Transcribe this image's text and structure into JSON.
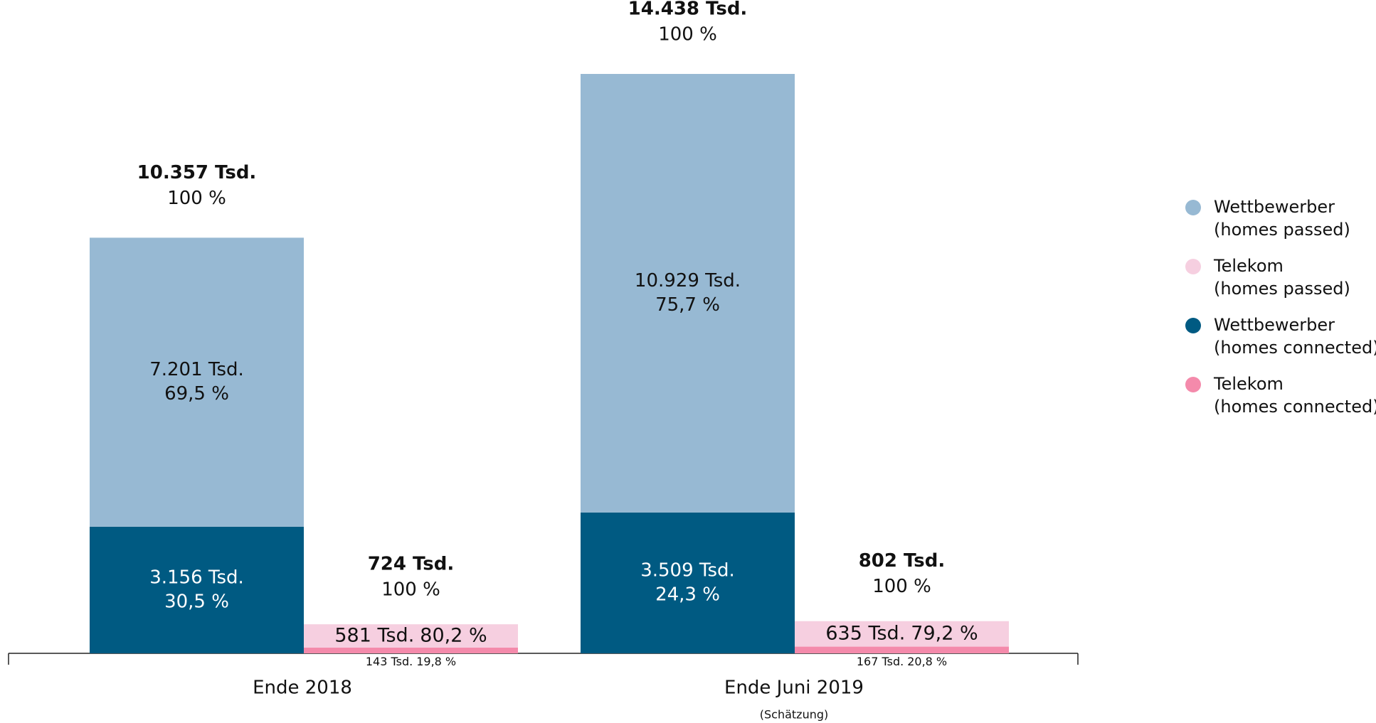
{
  "chart_data": {
    "type": "grouped_stacked_bar",
    "categories": [
      "Ende 2018",
      "Ende Juni 2019"
    ],
    "category_notes": [
      null,
      "(Schätzung)"
    ],
    "stacks": [
      {
        "totals": [
          10357,
          14438
        ],
        "total_labels": [
          "10.357 Tsd.",
          "14.438 Tsd."
        ],
        "total_percents": [
          100,
          100
        ],
        "total_percent_labels": [
          "100 %",
          "100 %"
        ],
        "series": [
          {
            "name": "Wettbewerber",
            "detail": "(homes connected)",
            "color": "#005a82",
            "values": [
              3156,
              3509
            ],
            "value_labels": [
              "3.156 Tsd.",
              "3.509 Tsd."
            ],
            "percents": [
              30.5,
              24.3
            ],
            "percent_labels": [
              "30,5 %",
              "24,3 %"
            ]
          },
          {
            "name": "Wettbewerber",
            "detail": "(homes passed)",
            "color": "#97b9d3",
            "values": [
              7201,
              10929
            ],
            "value_labels": [
              "7.201 Tsd.",
              "10.929 Tsd."
            ],
            "percents": [
              69.5,
              75.7
            ],
            "percent_labels": [
              "69,5 %",
              "75,7 %"
            ]
          }
        ]
      },
      {
        "totals": [
          724,
          802
        ],
        "total_labels": [
          "724 Tsd.",
          "802 Tsd."
        ],
        "total_percents": [
          100,
          100
        ],
        "total_percent_labels": [
          "100 %",
          "100 %"
        ],
        "series": [
          {
            "name": "Telekom",
            "detail": "(homes connected)",
            "color": "#f48aab",
            "values": [
              143,
              167
            ],
            "value_labels": [
              "143 Tsd.",
              "167 Tsd."
            ],
            "percents": [
              19.8,
              20.8
            ],
            "percent_labels": [
              "19,8 %",
              "20,8 %"
            ]
          },
          {
            "name": "Telekom",
            "detail": "(homes passed)",
            "color": "#f6cfe0",
            "values": [
              581,
              635
            ],
            "value_labels": [
              "581 Tsd.",
              "635 Tsd."
            ],
            "percents": [
              80.2,
              79.2
            ],
            "percent_labels": [
              "80,2 %",
              "79,2 %"
            ]
          }
        ]
      }
    ]
  }
}
